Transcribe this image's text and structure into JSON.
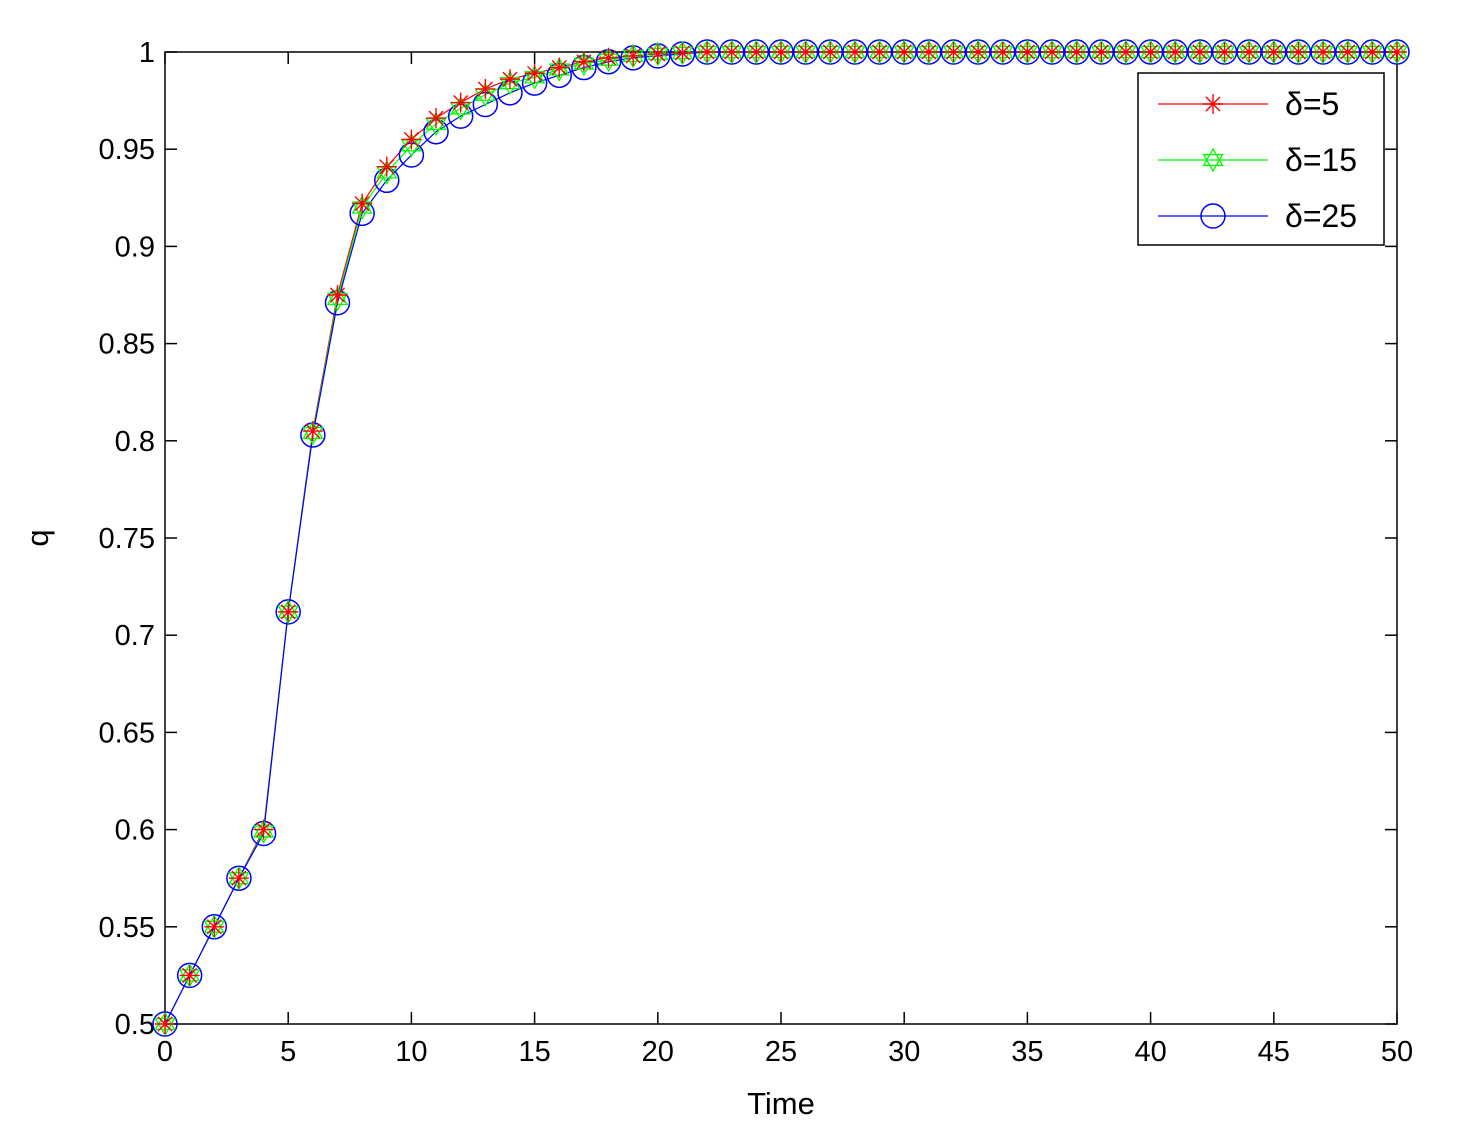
{
  "chart_data": {
    "type": "line",
    "title": "",
    "xlabel": "Time",
    "ylabel": "q",
    "xlim": [
      0,
      50
    ],
    "ylim": [
      0.5,
      1
    ],
    "xticks": [
      0,
      5,
      10,
      15,
      20,
      25,
      30,
      35,
      40,
      45,
      50
    ],
    "xtick_labels": [
      "0",
      "5",
      "10",
      "15",
      "20",
      "25",
      "30",
      "35",
      "40",
      "45",
      "50"
    ],
    "yticks": [
      0.5,
      0.55,
      0.6,
      0.65,
      0.7,
      0.75,
      0.8,
      0.85,
      0.9,
      0.95,
      1
    ],
    "ytick_labels": [
      "0.5",
      "0.55",
      "0.6",
      "0.65",
      "0.7",
      "0.75",
      "0.8",
      "0.85",
      "0.9",
      "0.95",
      "1"
    ],
    "grid": false,
    "legend_position": "top-right",
    "x": [
      0,
      1,
      2,
      3,
      4,
      5,
      6,
      7,
      8,
      9,
      10,
      11,
      12,
      13,
      14,
      15,
      16,
      17,
      18,
      19,
      20,
      21,
      22,
      23,
      24,
      25,
      26,
      27,
      28,
      29,
      30,
      31,
      32,
      33,
      34,
      35,
      36,
      37,
      38,
      39,
      40,
      41,
      42,
      43,
      44,
      45,
      46,
      47,
      48,
      49,
      50
    ],
    "series": [
      {
        "name": "δ=5",
        "color": "#ff0000",
        "marker": "asterisk",
        "values": [
          0.5,
          0.525,
          0.55,
          0.575,
          0.6,
          0.712,
          0.805,
          0.875,
          0.922,
          0.941,
          0.955,
          0.966,
          0.974,
          0.981,
          0.986,
          0.989,
          0.992,
          0.995,
          0.997,
          0.998,
          0.999,
          0.9995,
          1,
          1,
          1,
          1,
          1,
          1,
          1,
          1,
          1,
          1,
          1,
          1,
          1,
          1,
          1,
          1,
          1,
          1,
          1,
          1,
          1,
          1,
          1,
          1,
          1,
          1,
          1,
          1,
          1
        ]
      },
      {
        "name": "δ=15",
        "color": "#00ff00",
        "marker": "hexagram",
        "values": [
          0.5,
          0.525,
          0.55,
          0.575,
          0.599,
          0.712,
          0.804,
          0.873,
          0.92,
          0.938,
          0.952,
          0.963,
          0.971,
          0.978,
          0.984,
          0.987,
          0.991,
          0.994,
          0.996,
          0.998,
          0.999,
          0.9995,
          1,
          1,
          1,
          1,
          1,
          1,
          1,
          1,
          1,
          1,
          1,
          1,
          1,
          1,
          1,
          1,
          1,
          1,
          1,
          1,
          1,
          1,
          1,
          1,
          1,
          1,
          1,
          1,
          1
        ]
      },
      {
        "name": "δ=25",
        "color": "#0000ff",
        "marker": "circle",
        "values": [
          0.5,
          0.525,
          0.55,
          0.575,
          0.598,
          0.712,
          0.803,
          0.871,
          0.917,
          0.934,
          0.947,
          0.959,
          0.967,
          0.973,
          0.979,
          0.984,
          0.988,
          0.992,
          0.995,
          0.997,
          0.998,
          0.999,
          1,
          1,
          1,
          1,
          1,
          1,
          1,
          1,
          1,
          1,
          1,
          1,
          1,
          1,
          1,
          1,
          1,
          1,
          1,
          1,
          1,
          1,
          1,
          1,
          1,
          1,
          1,
          1,
          1
        ]
      }
    ]
  }
}
